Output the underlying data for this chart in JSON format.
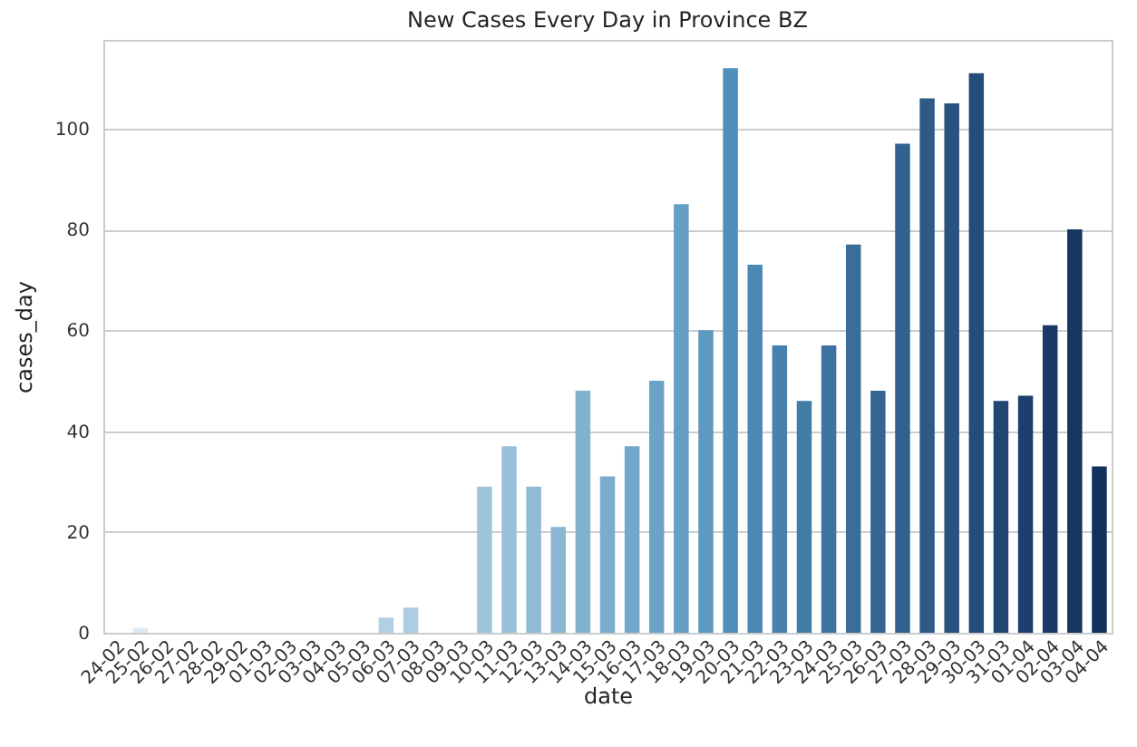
{
  "chart_data": {
    "type": "bar",
    "title": "New Cases Every Day in Province BZ",
    "xlabel": "date",
    "ylabel": "cases_day",
    "categories": [
      "24-02",
      "25-02",
      "26-02",
      "27-02",
      "28-02",
      "29-02",
      "01-03",
      "02-03",
      "03-03",
      "04-03",
      "05-03",
      "06-03",
      "07-03",
      "08-03",
      "09-03",
      "10-03",
      "11-03",
      "12-03",
      "13-03",
      "14-03",
      "15-03",
      "16-03",
      "17-03",
      "18-03",
      "19-03",
      "20-03",
      "21-03",
      "22-03",
      "23-03",
      "24-03",
      "25-03",
      "26-03",
      "27-03",
      "28-03",
      "29-03",
      "30-03",
      "31-03",
      "01-04",
      "02-04",
      "03-04",
      "04-04"
    ],
    "values": [
      0,
      1,
      0,
      0,
      0,
      0,
      0,
      0,
      0,
      0,
      0,
      3,
      5,
      0,
      0,
      29,
      37,
      29,
      21,
      48,
      31,
      37,
      50,
      85,
      60,
      112,
      73,
      57,
      46,
      57,
      77,
      48,
      97,
      106,
      105,
      111,
      46,
      47,
      61,
      80,
      33
    ],
    "colors": [
      "#e4eef6",
      "#dfebf4",
      "#dbe9f3",
      "#d6e6f1",
      "#d2e3ef",
      "#cde0ed",
      "#c8deeb",
      "#c4dbe9",
      "#bfd8e8",
      "#bbd5e6",
      "#b6d3e4",
      "#b1d0e2",
      "#adcde0",
      "#a8cade",
      "#a4c8dc",
      "#9fc5db",
      "#98c0d8",
      "#90bbd5",
      "#89b6d2",
      "#82b1cf",
      "#7baccc",
      "#73a8ca",
      "#6ca3c7",
      "#659ec4",
      "#5d99c1",
      "#4f8fbb",
      "#4b88b4",
      "#4782ae",
      "#437ba7",
      "#3e74a1",
      "#3a6e9a",
      "#366793",
      "#32618d",
      "#2e5a86",
      "#29537f",
      "#254d79",
      "#214672",
      "#1d3f6b",
      "#183965",
      "#163660",
      "#14325e"
    ],
    "ylim": [
      0,
      117.6
    ],
    "yticks": [
      0,
      20,
      40,
      60,
      80,
      100
    ],
    "grid": "y"
  }
}
